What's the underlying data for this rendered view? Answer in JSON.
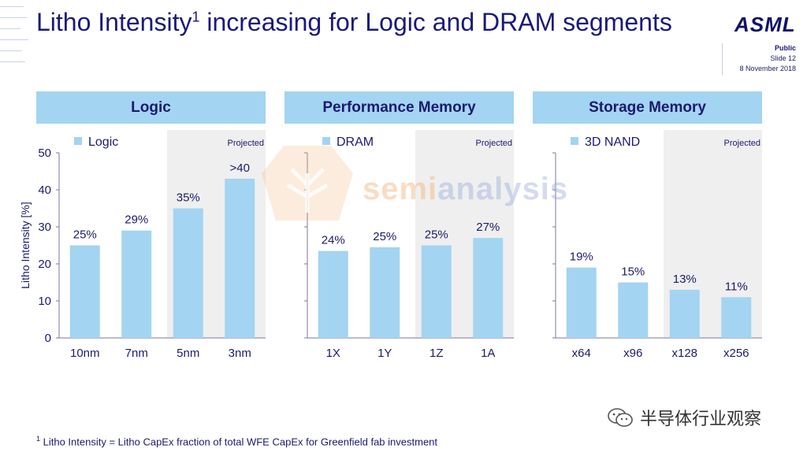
{
  "title": {
    "main": "Litho Intensity",
    "superscript": "1",
    "rest": " increasing for Logic and DRAM segments"
  },
  "brand": {
    "logo": "ASML"
  },
  "meta": {
    "classification": "Public",
    "slide": "Slide 12",
    "date": "8 November 2018"
  },
  "footnote": {
    "marker": "1",
    "text": " Litho Intensity = Litho CapEx fraction of total WFE CapEx for Greenfield fab investment"
  },
  "watermark": {
    "left": "semi",
    "right": "analysis"
  },
  "wechat_label": "半导体行业观察",
  "colors": {
    "bar": "#a3d4f2",
    "header": "#a3d4f2",
    "projected_bg": "#efefef",
    "text": "#1a1a6e"
  },
  "chart_data": [
    {
      "type": "bar",
      "title": "Logic",
      "legend": "Logic",
      "ylabel": "Litho Intensity [%]",
      "ylim": [
        0,
        50
      ],
      "yticks": [
        "0",
        "10",
        "20",
        "30",
        "40",
        "50"
      ],
      "categories": [
        "10nm",
        "7nm",
        "5nm",
        "3nm"
      ],
      "values": [
        25,
        29,
        35,
        43
      ],
      "labels": [
        "25%",
        "29%",
        "35%",
        ">40"
      ],
      "projected_label": "Projected",
      "projected_from_index": 2
    },
    {
      "type": "bar",
      "title": "Performance Memory",
      "legend": "DRAM",
      "ylim": [
        0,
        50
      ],
      "categories": [
        "1X",
        "1Y",
        "1Z",
        "1A"
      ],
      "values": [
        23.5,
        24.5,
        25,
        27
      ],
      "labels": [
        "24%",
        "25%",
        "25%",
        "27%"
      ],
      "projected_label": "Projected",
      "projected_from_index": 2
    },
    {
      "type": "bar",
      "title": "Storage Memory",
      "legend": "3D NAND",
      "ylim": [
        0,
        50
      ],
      "categories": [
        "x64",
        "x96",
        "x128",
        "x256"
      ],
      "values": [
        19,
        15,
        13,
        11
      ],
      "labels": [
        "19%",
        "15%",
        "13%",
        "11%"
      ],
      "projected_label": "Projected",
      "projected_from_index": 2
    }
  ]
}
